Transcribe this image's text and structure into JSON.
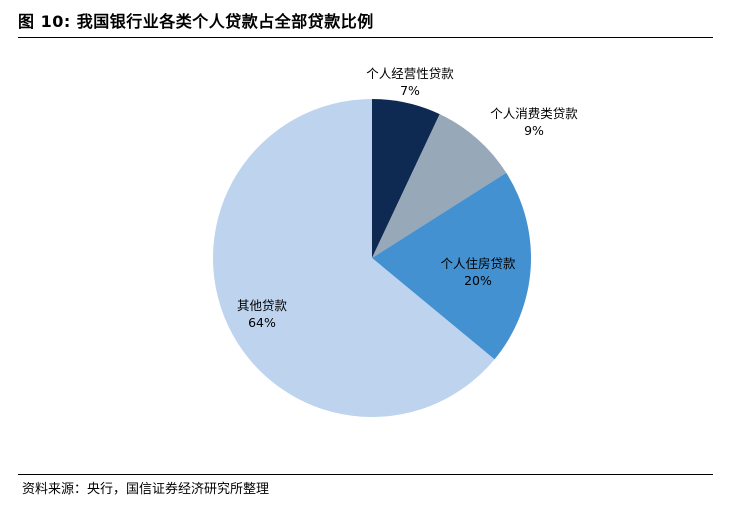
{
  "header": {
    "title": "图 10:  我国银行业各类个人贷款占全部贷款比例"
  },
  "footer": {
    "source": "资料来源：央行，国信证券经济研究所整理"
  },
  "colors": {
    "slice_business": "#0f2a52",
    "slice_consumer": "#97a8b9",
    "slice_housing": "#4491d2",
    "slice_other": "#bdd3ee"
  },
  "chart_data": {
    "type": "pie",
    "start_angle_deg": 0,
    "direction": "clockwise",
    "slices": [
      {
        "label": "个人经营性贷款",
        "value": 7,
        "value_label": "7%",
        "color": "#0f2a52"
      },
      {
        "label": "个人消费类贷款",
        "value": 9,
        "value_label": "9%",
        "color": "#97a8b9"
      },
      {
        "label": "个人住房贷款",
        "value": 20,
        "value_label": "20%",
        "color": "#4491d2"
      },
      {
        "label": "其他贷款",
        "value": 64,
        "value_label": "64%",
        "color": "#bdd3ee"
      }
    ]
  }
}
